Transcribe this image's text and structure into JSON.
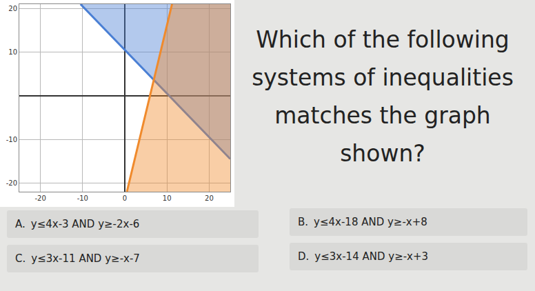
{
  "chart_data": {
    "type": "inequality",
    "xlim": [
      -25,
      25
    ],
    "ylim": [
      -22,
      21
    ],
    "xticks": [
      -20,
      -10,
      0,
      10,
      20
    ],
    "yticks": [
      -20,
      -10,
      10,
      20
    ],
    "grid": true,
    "series": [
      {
        "type": "upper",
        "color": "#4a7fd4",
        "x": [
          -10.5,
          25
        ],
        "values": [
          21,
          -14.5
        ]
      },
      {
        "type": "lower",
        "color": "#f08a2c",
        "x": [
          0.5,
          11.2
        ],
        "values": [
          -22,
          21
        ]
      }
    ]
  },
  "question": "Which of the following systems of inequalities matches the graph shown?",
  "options": [
    {
      "letter": "A.",
      "text": "y≤4x-3 AND y≥-2x-6"
    },
    {
      "letter": "B.",
      "text": "y≤4x-18 AND y≥-x+8"
    },
    {
      "letter": "C.",
      "text": "y≤3x-11 AND y≥-x-7"
    },
    {
      "letter": "D.",
      "text": "y≤3x-14 AND y≥-x+3"
    }
  ]
}
